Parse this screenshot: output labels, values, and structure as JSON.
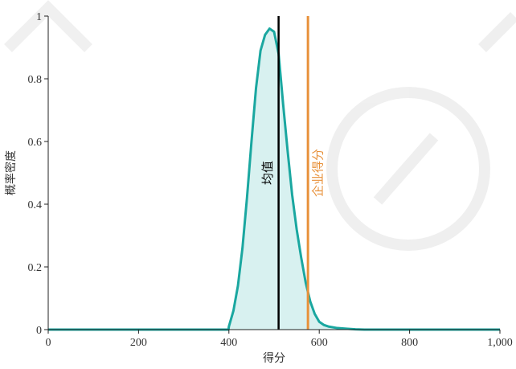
{
  "chart_data": {
    "type": "area",
    "xlabel": "得分",
    "ylabel": "概率密度",
    "xlim": [
      0,
      1000
    ],
    "ylim": [
      0,
      1
    ],
    "xticks": [
      0,
      200,
      400,
      600,
      800,
      1000
    ],
    "xtick_labels": [
      "0",
      "200",
      "400",
      "600",
      "800",
      "1,000"
    ],
    "yticks": [
      0,
      0.2,
      0.4,
      0.6,
      0.8,
      1
    ],
    "ytick_labels": [
      "0",
      "0.2",
      "0.4",
      "0.6",
      "0.8",
      "1"
    ],
    "grid": false,
    "series": [
      {
        "type": "area",
        "color": "#1aa7a0",
        "fill": "#d8f1f0",
        "x": [
          0,
          100,
          200,
          300,
          399,
          400,
          410,
          420,
          430,
          440,
          450,
          460,
          470,
          480,
          490,
          500,
          510,
          520,
          530,
          540,
          550,
          560,
          570,
          580,
          590,
          600,
          610,
          620,
          640,
          660,
          680,
          700,
          800,
          900,
          1000
        ],
        "y": [
          0,
          0,
          0,
          0,
          0,
          0.01,
          0.06,
          0.14,
          0.26,
          0.42,
          0.6,
          0.77,
          0.89,
          0.94,
          0.96,
          0.95,
          0.88,
          0.72,
          0.57,
          0.43,
          0.32,
          0.23,
          0.15,
          0.09,
          0.05,
          0.025,
          0.015,
          0.01,
          0.005,
          0.003,
          0.001,
          0,
          0,
          0,
          0
        ]
      }
    ],
    "annotations": [
      {
        "label": "均值",
        "x": 510,
        "color": "#000000"
      },
      {
        "label": "企业得分",
        "x": 575,
        "color": "#e8913a"
      }
    ]
  }
}
